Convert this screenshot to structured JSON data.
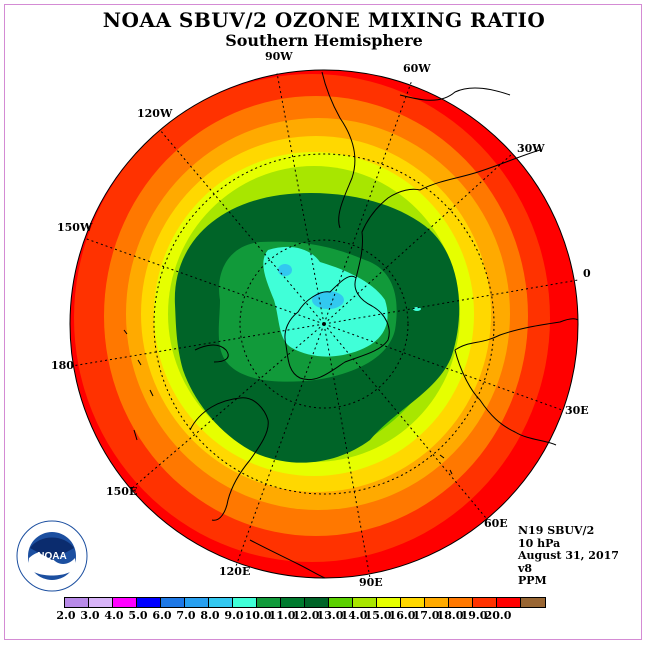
{
  "title": "NOAA SBUV/2 OZONE MIXING RATIO",
  "subtitle": "Southern Hemisphere",
  "longitude_labels": [
    "90W",
    "60W",
    "30W",
    "0",
    "30E",
    "60E",
    "90E",
    "120E",
    "150E",
    "180",
    "150W",
    "120W"
  ],
  "info": {
    "instrument": "N19 SBUV/2",
    "level": "10 hPa",
    "date": "August 31, 2017",
    "version": "v8",
    "units": "PPM"
  },
  "colorbar": {
    "tick_labels": [
      "2.0",
      "3.0",
      "4.0",
      "5.0",
      "6.0",
      "7.0",
      "8.0",
      "9.0",
      "10.0",
      "11.0",
      "12.0",
      "13.0",
      "14.0",
      "15.0",
      "16.0",
      "17.0",
      "18.0",
      "19.0",
      "20.0"
    ],
    "colors": [
      "#b88ae8",
      "#d8b4f8",
      "#ff00ff",
      "#0000ff",
      "#1e78e6",
      "#28a0f0",
      "#32c8f0",
      "#40ffd8",
      "#119a3a",
      "#007a2e",
      "#006428",
      "#5ad000",
      "#a8e600",
      "#e6ff00",
      "#ffd800",
      "#ffaa00",
      "#ff7800",
      "#ff3200",
      "#ff0000",
      "#996633"
    ]
  },
  "logo": {
    "text": "NOAA",
    "ring_text": "NATIONAL OCEANIC AND ATMOSPHERIC ADMINISTRATION · U.S. DEPARTMENT OF COMMERCE"
  }
}
